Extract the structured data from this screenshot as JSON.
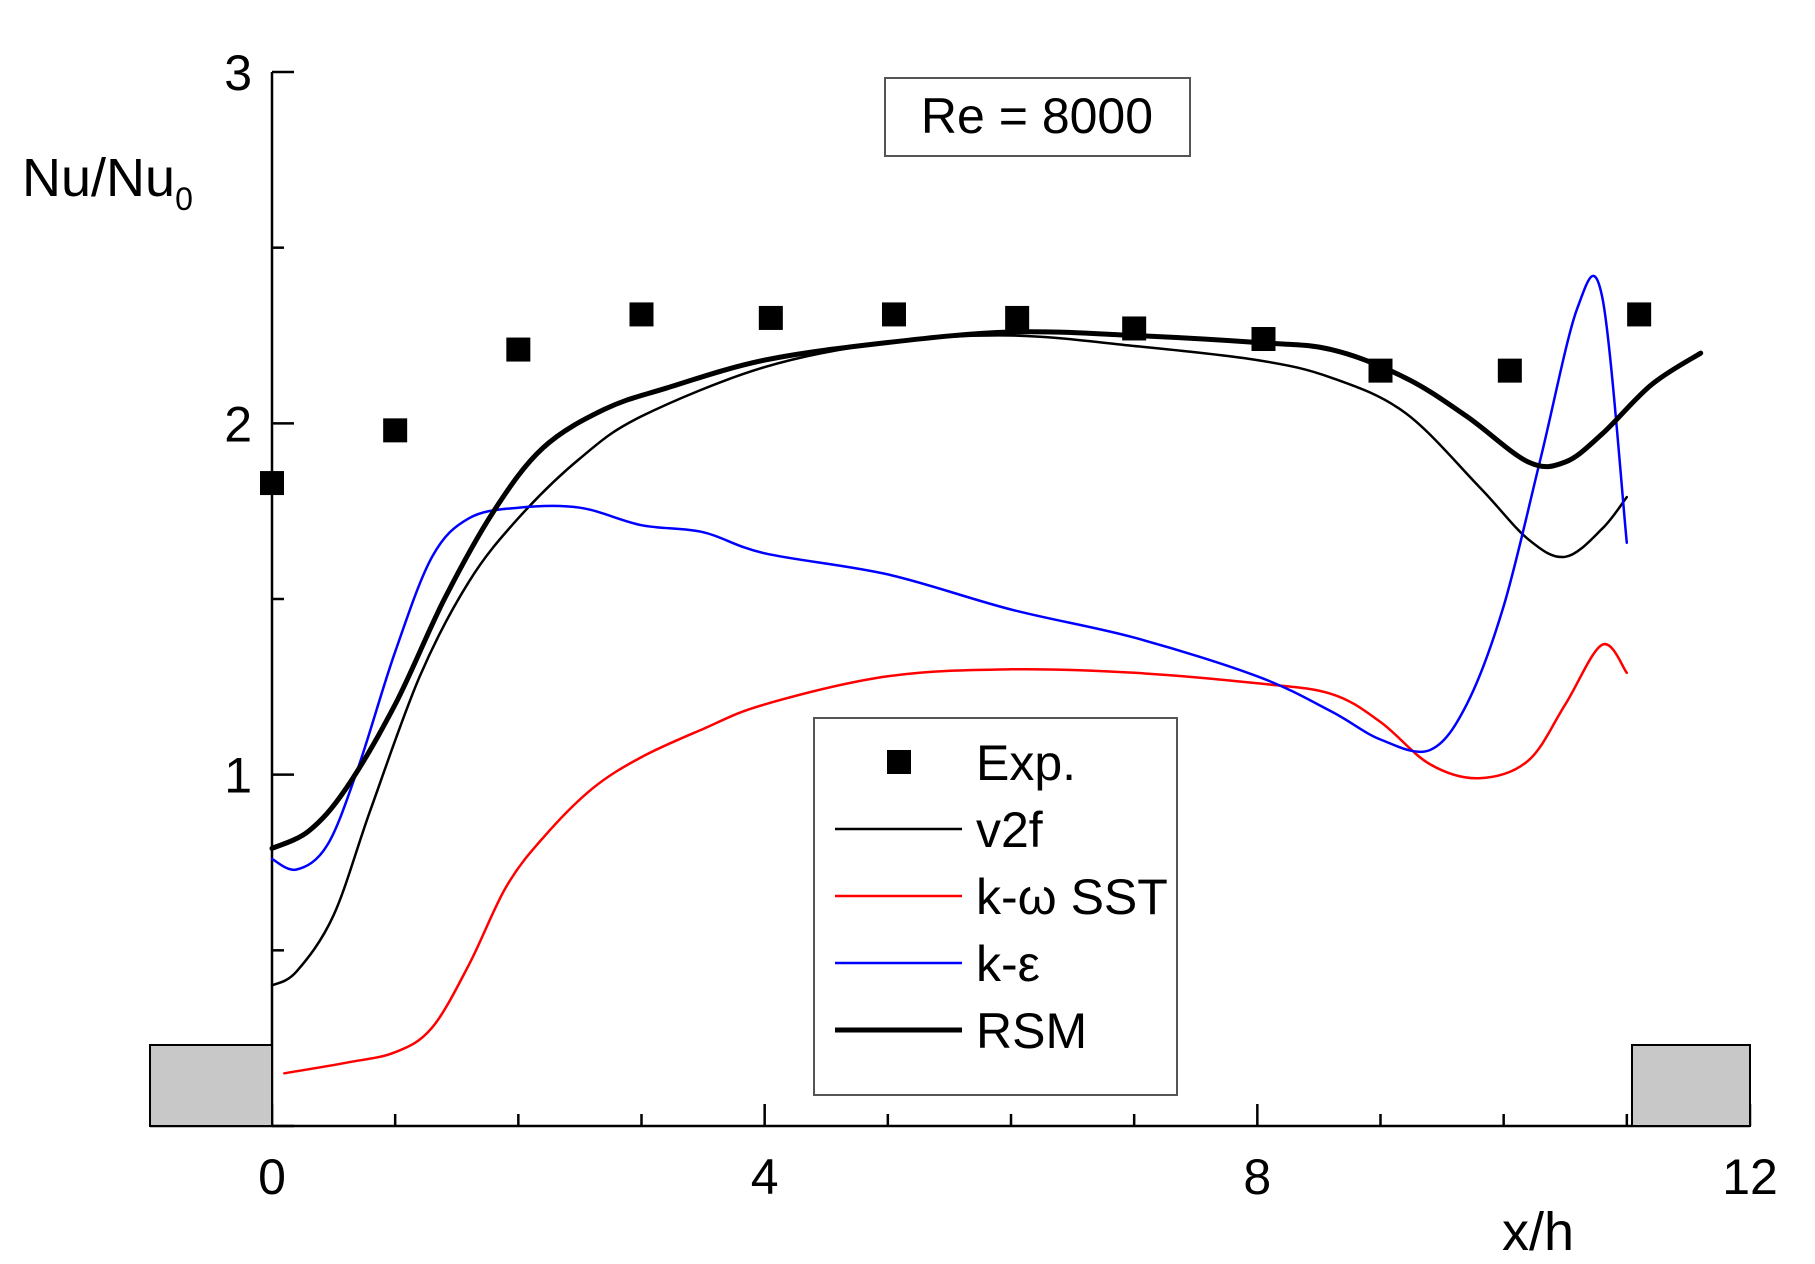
{
  "chart_data": {
    "type": "line",
    "title": "",
    "annotation": "Re = 8000",
    "xlabel": "x/h",
    "ylabel": "Nu/Nu",
    "ylabel_subscript": "0",
    "xlim": [
      0,
      12
    ],
    "ylim": [
      0,
      3
    ],
    "x_ticks": [
      0,
      4,
      8,
      12
    ],
    "y_ticks": [
      1,
      2,
      3
    ],
    "grid": false,
    "legend_position": "bottom-center",
    "series": [
      {
        "name": "Exp.",
        "kind": "markers",
        "color": "#000000",
        "x": [
          0.0,
          1.0,
          2.0,
          3.0,
          4.05,
          5.05,
          6.05,
          7.0,
          8.05,
          9.0,
          10.05,
          11.1
        ],
        "y": [
          1.83,
          1.98,
          2.21,
          2.31,
          2.3,
          2.31,
          2.3,
          2.27,
          2.24,
          2.15,
          2.15,
          2.31
        ]
      },
      {
        "name": "v2f",
        "kind": "line",
        "color": "#000000",
        "width": "thin",
        "x": [
          0.0,
          0.2,
          0.5,
          0.8,
          1.2,
          1.6,
          2.0,
          2.5,
          3.0,
          4.0,
          5.0,
          6.0,
          7.0,
          8.0,
          8.6,
          9.2,
          9.8,
          10.2,
          10.5,
          10.8,
          11.0
        ],
        "y": [
          0.4,
          0.44,
          0.6,
          0.9,
          1.28,
          1.55,
          1.73,
          1.9,
          2.02,
          2.16,
          2.23,
          2.25,
          2.22,
          2.18,
          2.13,
          2.03,
          1.82,
          1.67,
          1.62,
          1.7,
          1.79
        ]
      },
      {
        "name": "k-ω SST",
        "kind": "line",
        "color": "#ff0000",
        "width": "thin",
        "x": [
          0.1,
          0.6,
          1.0,
          1.3,
          1.6,
          1.9,
          2.2,
          2.6,
          3.0,
          3.5,
          4.0,
          5.0,
          6.0,
          7.0,
          8.0,
          8.6,
          9.0,
          9.4,
          9.8,
          10.2,
          10.5,
          10.8,
          11.0
        ],
        "y": [
          0.15,
          0.18,
          0.21,
          0.28,
          0.46,
          0.68,
          0.82,
          0.96,
          1.05,
          1.13,
          1.2,
          1.28,
          1.3,
          1.29,
          1.26,
          1.23,
          1.15,
          1.03,
          0.99,
          1.04,
          1.2,
          1.37,
          1.29
        ]
      },
      {
        "name": "k-ε",
        "kind": "line",
        "color": "#0000ff",
        "width": "thin",
        "x": [
          0.0,
          0.2,
          0.45,
          0.7,
          1.0,
          1.3,
          1.6,
          2.0,
          2.5,
          3.0,
          3.5,
          4.0,
          5.0,
          6.0,
          7.0,
          8.0,
          8.6,
          9.0,
          9.4,
          9.7,
          10.0,
          10.3,
          10.6,
          10.8,
          11.0
        ],
        "y": [
          0.76,
          0.73,
          0.8,
          1.02,
          1.35,
          1.62,
          1.73,
          1.76,
          1.76,
          1.71,
          1.69,
          1.63,
          1.57,
          1.47,
          1.39,
          1.28,
          1.18,
          1.1,
          1.07,
          1.2,
          1.48,
          1.9,
          2.33,
          2.36,
          1.66
        ]
      },
      {
        "name": "RSM",
        "kind": "line",
        "color": "#000000",
        "width": "thick",
        "x": [
          0.0,
          0.3,
          0.6,
          1.0,
          1.4,
          1.8,
          2.2,
          2.7,
          3.2,
          4.0,
          5.0,
          6.0,
          7.0,
          8.0,
          8.6,
          9.2,
          9.7,
          10.2,
          10.5,
          10.8,
          11.2,
          11.6
        ],
        "y": [
          0.79,
          0.84,
          0.96,
          1.2,
          1.5,
          1.75,
          1.93,
          2.04,
          2.1,
          2.18,
          2.23,
          2.26,
          2.25,
          2.23,
          2.21,
          2.13,
          2.02,
          1.89,
          1.89,
          1.97,
          2.11,
          2.2
        ]
      }
    ]
  }
}
